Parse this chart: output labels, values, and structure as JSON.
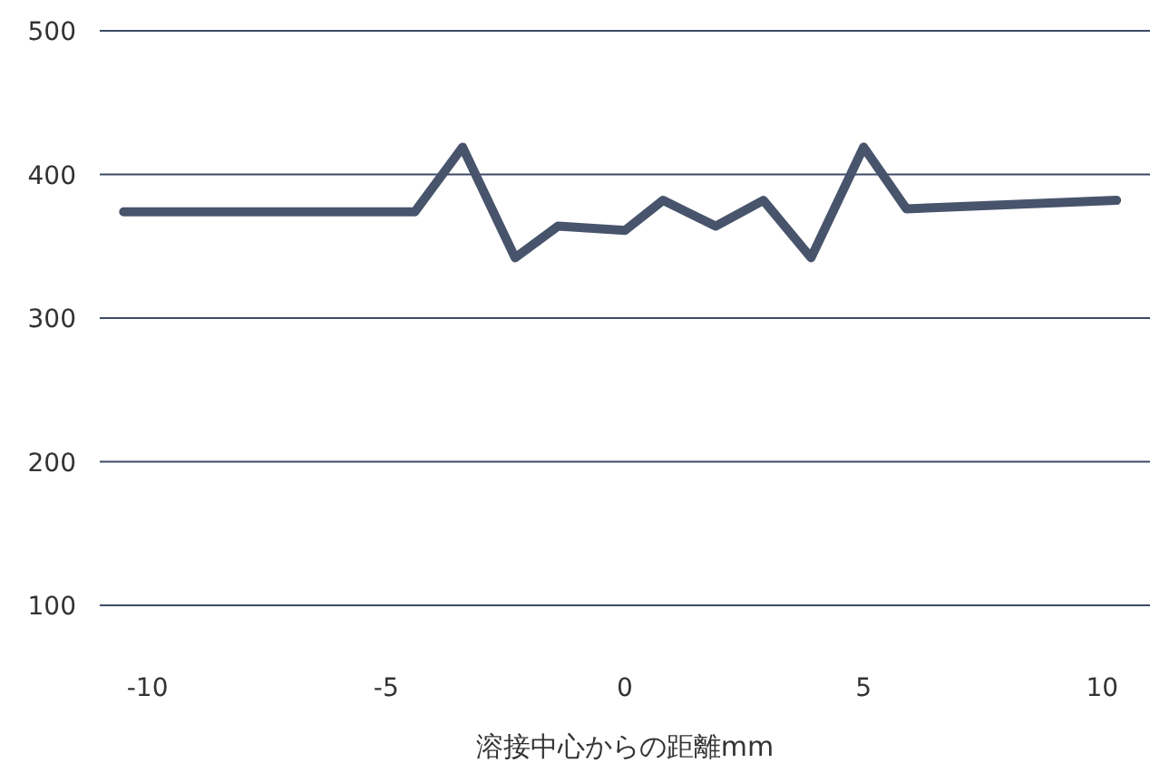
{
  "chart_data": {
    "type": "line",
    "xlabel": "溶接中心からの距離mm",
    "xlim": [
      -11,
      11
    ],
    "xticks": [
      -10,
      -5,
      0,
      5,
      10
    ],
    "ylim": [
      100,
      500
    ],
    "yticks": [
      100,
      200,
      300,
      400,
      500
    ],
    "grid": "y",
    "marker": "none",
    "line_style": "solid",
    "series": [
      {
        "color": "#48546c",
        "x": [
          -10.5,
          -4.4,
          -3.4,
          -2.3,
          -1.4,
          0,
          0.8,
          1.9,
          2.9,
          3.9,
          5,
          5.9,
          10.3
        ],
        "values": [
          374,
          374,
          419,
          342,
          364,
          361,
          382,
          364,
          382,
          342,
          419,
          376,
          382
        ]
      }
    ]
  }
}
